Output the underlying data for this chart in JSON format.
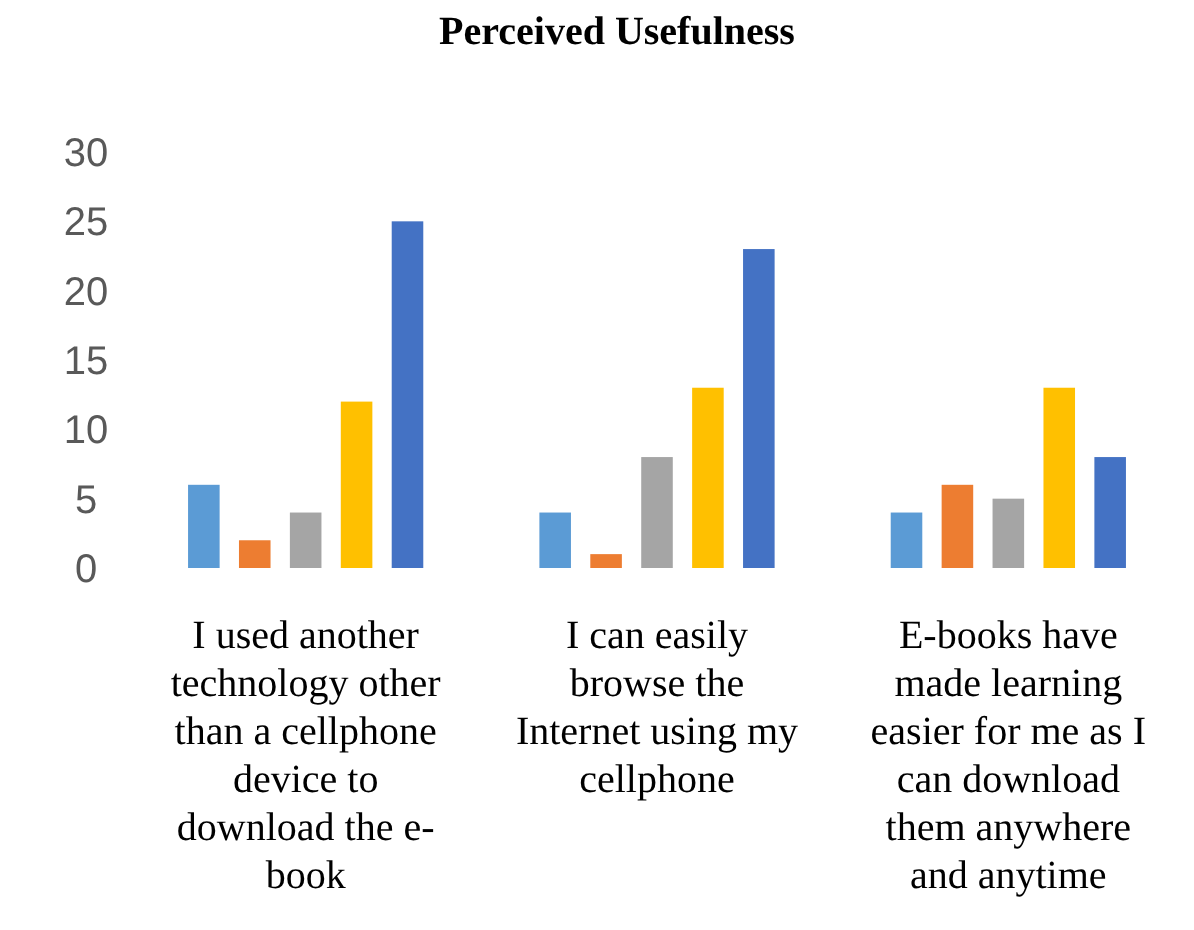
{
  "chart_data": {
    "type": "bar",
    "title": "Perceived Usefulness",
    "categories": [
      "I used another technology other than a cellphone device to download the e-book",
      "I can easily browse the Internet using my cellphone",
      "E-books  have made learning easier for me as I can download them anywhere and anytime"
    ],
    "series": [
      {
        "color": "#5b9bd5",
        "values": [
          6,
          4,
          4
        ]
      },
      {
        "color": "#ed7d31",
        "values": [
          2,
          1,
          6
        ]
      },
      {
        "color": "#a5a5a5",
        "values": [
          4,
          8,
          5
        ]
      },
      {
        "color": "#ffc000",
        "values": [
          12,
          13,
          13
        ]
      },
      {
        "color": "#4472c4",
        "values": [
          25,
          23,
          8
        ]
      }
    ],
    "ylim": [
      0,
      30
    ],
    "yticks": [
      0,
      5,
      10,
      15,
      20,
      25,
      30
    ],
    "grid": false
  }
}
